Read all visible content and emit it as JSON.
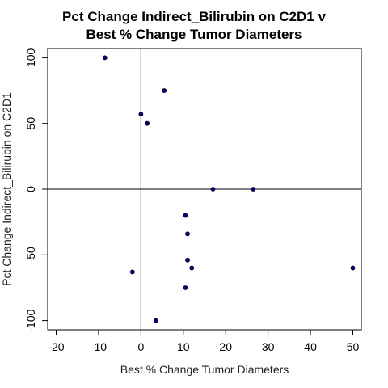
{
  "chart_data": {
    "type": "scatter",
    "title_lines": [
      "Pct Change Indirect_Bilirubin on C2D1 v",
      "Best % Change Tumor Diameters"
    ],
    "xlabel": "Best % Change Tumor Diameters",
    "ylabel": "Pct Change Indirect_Bilirubin on C2D1",
    "xlim": [
      -22,
      52
    ],
    "ylim": [
      -107,
      107
    ],
    "x_ticks": [
      -20,
      -10,
      0,
      10,
      20,
      30,
      40,
      50
    ],
    "y_ticks": [
      -100,
      -50,
      0,
      50,
      100
    ],
    "reference_lines": {
      "x": 0,
      "y": 0
    },
    "grid": false,
    "point_color": "#000080",
    "points": [
      {
        "x": -8.5,
        "y": 100
      },
      {
        "x": 5.5,
        "y": 75
      },
      {
        "x": 0,
        "y": 57
      },
      {
        "x": 1.5,
        "y": 50
      },
      {
        "x": 17,
        "y": 0
      },
      {
        "x": 26.5,
        "y": 0
      },
      {
        "x": 10.5,
        "y": -20
      },
      {
        "x": 11,
        "y": -34
      },
      {
        "x": 11,
        "y": -54
      },
      {
        "x": 12,
        "y": -60
      },
      {
        "x": 50,
        "y": -60
      },
      {
        "x": -2,
        "y": -63
      },
      {
        "x": 10.5,
        "y": -75
      },
      {
        "x": 3.5,
        "y": -100
      }
    ]
  }
}
